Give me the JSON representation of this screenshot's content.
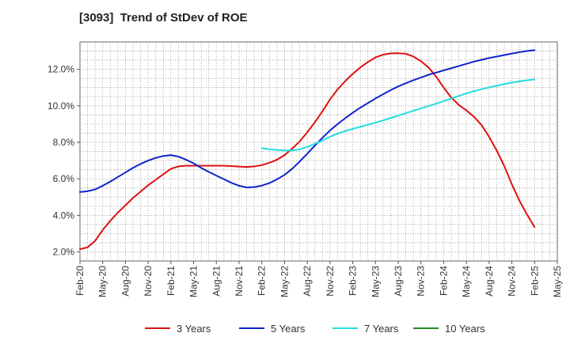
{
  "chart_data": {
    "type": "line",
    "title": "[3093]  Trend of StDev of ROE",
    "xlabel": "",
    "ylabel": "",
    "x_ticks": [
      "Feb-20",
      "May-20",
      "Aug-20",
      "Nov-20",
      "Feb-21",
      "May-21",
      "Aug-21",
      "Nov-21",
      "Feb-22",
      "May-22",
      "Aug-22",
      "Nov-22",
      "Feb-23",
      "May-23",
      "Aug-23",
      "Nov-23",
      "Feb-24",
      "May-24",
      "Aug-24",
      "Nov-24",
      "Feb-25",
      "May-25"
    ],
    "y_ticks": [
      "2.0%",
      "4.0%",
      "6.0%",
      "8.0%",
      "10.0%",
      "12.0%"
    ],
    "ylim": [
      1.5,
      13.5
    ],
    "grid": true,
    "legend_position": "bottom",
    "series": [
      {
        "name": "3 Years",
        "color": "#dd1111",
        "x": [
          "Feb-20",
          "Mar-20",
          "Apr-20",
          "May-20",
          "Jun-20",
          "Jul-20",
          "Aug-20",
          "Sep-20",
          "Oct-20",
          "Nov-20",
          "Dec-20",
          "Jan-21",
          "Feb-21",
          "Mar-21",
          "Apr-21",
          "May-21",
          "Jun-21",
          "Jul-21",
          "Aug-21",
          "Sep-21",
          "Oct-21",
          "Nov-21",
          "Dec-21",
          "Jan-22",
          "Feb-22",
          "Mar-22",
          "Apr-22",
          "May-22",
          "Jun-22",
          "Jul-22",
          "Aug-22",
          "Sep-22",
          "Oct-22",
          "Nov-22",
          "Dec-22",
          "Jan-23",
          "Feb-23",
          "Mar-23",
          "Apr-23",
          "May-23",
          "Jun-23",
          "Jul-23",
          "Aug-23",
          "Sep-23",
          "Oct-23",
          "Nov-23",
          "Dec-23",
          "Jan-24",
          "Feb-24",
          "Mar-24",
          "Apr-24",
          "May-24",
          "Jun-24",
          "Jul-24",
          "Aug-24",
          "Sep-24",
          "Oct-24",
          "Nov-24",
          "Dec-24",
          "Jan-25",
          "Feb-25"
        ],
        "values": [
          2.15,
          2.25,
          2.6,
          3.2,
          3.7,
          4.15,
          4.55,
          4.95,
          5.3,
          5.65,
          5.95,
          6.25,
          6.55,
          6.68,
          6.72,
          6.72,
          6.72,
          6.72,
          6.72,
          6.72,
          6.7,
          6.67,
          6.65,
          6.68,
          6.75,
          6.88,
          7.05,
          7.3,
          7.65,
          8.05,
          8.55,
          9.1,
          9.7,
          10.35,
          10.9,
          11.35,
          11.75,
          12.1,
          12.4,
          12.65,
          12.8,
          12.87,
          12.88,
          12.85,
          12.7,
          12.45,
          12.1,
          11.6,
          11.0,
          10.45,
          10.05,
          9.75,
          9.4,
          8.95,
          8.3,
          7.55,
          6.7,
          5.7,
          4.8,
          4.05,
          3.35
        ]
      },
      {
        "name": "5 Years",
        "color": "#1122cc",
        "x": [
          "Feb-20",
          "Mar-20",
          "Apr-20",
          "May-20",
          "Jun-20",
          "Jul-20",
          "Aug-20",
          "Sep-20",
          "Oct-20",
          "Nov-20",
          "Dec-20",
          "Jan-21",
          "Feb-21",
          "Mar-21",
          "Apr-21",
          "May-21",
          "Jun-21",
          "Jul-21",
          "Aug-21",
          "Sep-21",
          "Oct-21",
          "Nov-21",
          "Dec-21",
          "Jan-22",
          "Feb-22",
          "Mar-22",
          "Apr-22",
          "May-22",
          "Jun-22",
          "Jul-22",
          "Aug-22",
          "Sep-22",
          "Oct-22",
          "Nov-22",
          "Dec-22",
          "Jan-23",
          "Feb-23",
          "Mar-23",
          "Apr-23",
          "May-23",
          "Jun-23",
          "Jul-23",
          "Aug-23",
          "Sep-23",
          "Oct-23",
          "Nov-23",
          "Dec-23",
          "Jan-24",
          "Feb-24",
          "Mar-24",
          "Apr-24",
          "May-24",
          "Jun-24",
          "Jul-24",
          "Aug-24",
          "Sep-24",
          "Oct-24",
          "Nov-24",
          "Dec-24",
          "Jan-25",
          "Feb-25"
        ],
        "values": [
          5.28,
          5.32,
          5.42,
          5.62,
          5.85,
          6.1,
          6.35,
          6.6,
          6.82,
          7.0,
          7.15,
          7.25,
          7.3,
          7.22,
          7.05,
          6.85,
          6.6,
          6.38,
          6.18,
          5.98,
          5.78,
          5.62,
          5.53,
          5.55,
          5.63,
          5.77,
          5.97,
          6.22,
          6.55,
          6.95,
          7.38,
          7.82,
          8.25,
          8.65,
          9.0,
          9.32,
          9.62,
          9.9,
          10.15,
          10.4,
          10.63,
          10.86,
          11.06,
          11.24,
          11.4,
          11.55,
          11.7,
          11.82,
          11.94,
          12.06,
          12.18,
          12.3,
          12.42,
          12.52,
          12.62,
          12.7,
          12.78,
          12.86,
          12.94,
          13.0,
          13.05
        ]
      },
      {
        "name": "7 Years",
        "color": "#22dddd",
        "x": [
          "Feb-22",
          "Mar-22",
          "Apr-22",
          "May-22",
          "Jun-22",
          "Jul-22",
          "Aug-22",
          "Sep-22",
          "Oct-22",
          "Nov-22",
          "Dec-22",
          "Jan-23",
          "Feb-23",
          "Mar-23",
          "Apr-23",
          "May-23",
          "Jun-23",
          "Jul-23",
          "Aug-23",
          "Sep-23",
          "Oct-23",
          "Nov-23",
          "Dec-23",
          "Jan-24",
          "Feb-24",
          "Mar-24",
          "Apr-24",
          "May-24",
          "Jun-24",
          "Jul-24",
          "Aug-24",
          "Sep-24",
          "Oct-24",
          "Nov-24",
          "Dec-24",
          "Jan-25",
          "Feb-25"
        ],
        "values": [
          7.68,
          7.62,
          7.58,
          7.55,
          7.55,
          7.62,
          7.75,
          7.92,
          8.1,
          8.3,
          8.48,
          8.62,
          8.74,
          8.85,
          8.96,
          9.08,
          9.2,
          9.33,
          9.46,
          9.6,
          9.73,
          9.86,
          9.99,
          10.12,
          10.26,
          10.4,
          10.54,
          10.68,
          10.8,
          10.91,
          11.01,
          11.1,
          11.19,
          11.27,
          11.34,
          11.4,
          11.45
        ]
      },
      {
        "name": "10 Years",
        "color": "#228822",
        "x": [],
        "values": []
      }
    ]
  }
}
